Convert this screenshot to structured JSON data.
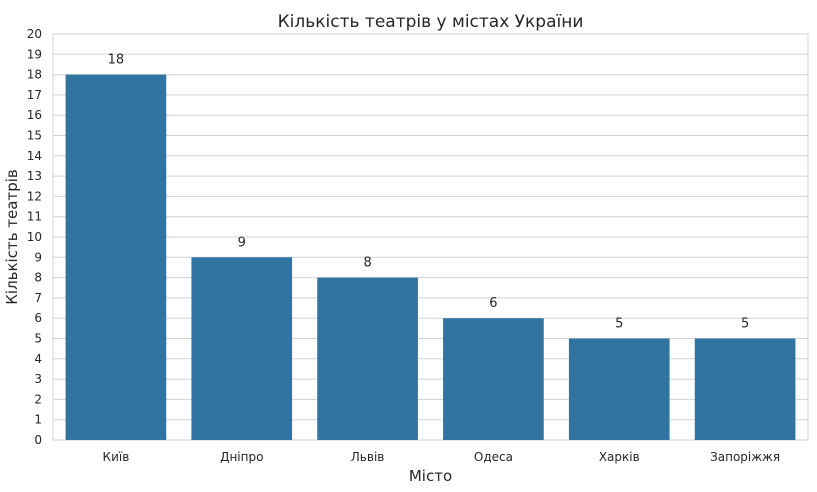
{
  "chart_data": {
    "type": "bar",
    "title": "Кількість театрів у містах України",
    "xlabel": "Місто",
    "ylabel": "Кількість театрів",
    "categories": [
      "Київ",
      "Дніпро",
      "Львів",
      "Одеса",
      "Харків",
      "Запоріжжя"
    ],
    "values": [
      18,
      9,
      8,
      6,
      5,
      5
    ],
    "ylim": [
      0,
      20
    ],
    "yticks": [
      0,
      1,
      2,
      3,
      4,
      5,
      6,
      7,
      8,
      9,
      10,
      11,
      12,
      13,
      14,
      15,
      16,
      17,
      18,
      19,
      20
    ],
    "grid": "horizontal",
    "bar_color": "#3274a1",
    "data_labels": true
  }
}
